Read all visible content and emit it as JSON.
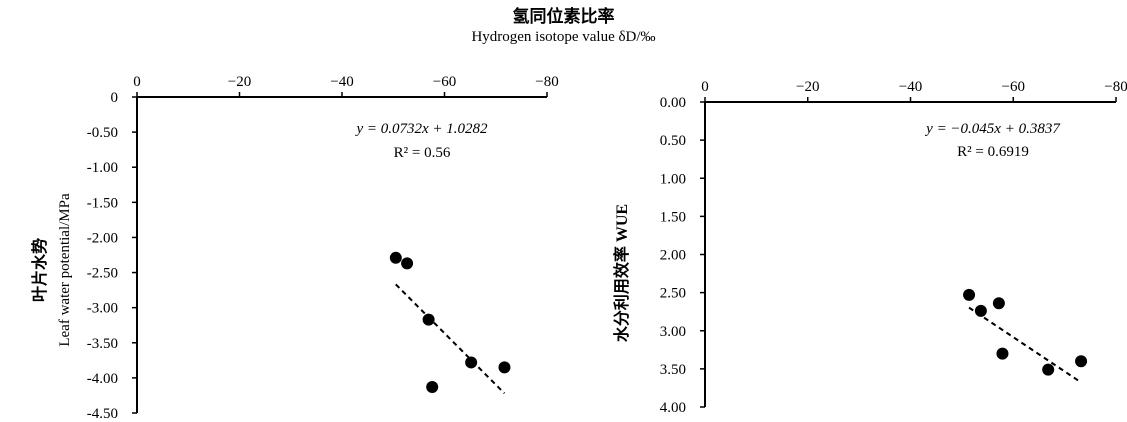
{
  "chart_data": [
    {
      "type": "scatter",
      "title": "氢同位素比率",
      "subtitle": "Hydrogen isotope value δD/‰",
      "xlabel": "Hydrogen isotope value δD/‰",
      "ylabel_zh": "叶片水势",
      "ylabel_en": "Leaf water potential/MPa",
      "xlim": [
        0,
        -80
      ],
      "ylim": [
        0,
        -4.5
      ],
      "x_ticks": [
        "0",
        "−20",
        "−40",
        "−60",
        "−80"
      ],
      "x_tick_values": [
        0,
        -20,
        -40,
        -60,
        -80
      ],
      "y_ticks": [
        "0",
        "-0.50",
        "-1.00",
        "-1.50",
        "-2.00",
        "-2.50",
        "-3.00",
        "-3.50",
        "-4.00",
        "-4.50"
      ],
      "y_tick_values": [
        0,
        -0.5,
        -1.0,
        -1.5,
        -2.0,
        -2.5,
        -3.0,
        -3.5,
        -4.0,
        -4.5
      ],
      "points": [
        {
          "x": -50.5,
          "y": -2.29
        },
        {
          "x": -52.7,
          "y": -2.37
        },
        {
          "x": -56.9,
          "y": -3.17
        },
        {
          "x": -57.6,
          "y": -4.13
        },
        {
          "x": -65.2,
          "y": -3.78
        },
        {
          "x": -71.7,
          "y": -3.85
        }
      ],
      "trendline": {
        "slope": 0.0732,
        "intercept": 1.0282,
        "x_range": [
          -50.5,
          -71.7
        ],
        "style": "dashed"
      },
      "equation": "y = 0.0732x + 1.0282",
      "r2": "R² = 0.56"
    },
    {
      "type": "scatter",
      "title": "氢同位素比率",
      "subtitle": "Hydrogen isotope value δD/‰",
      "xlabel": "Hydrogen isotope value δD/‰",
      "ylabel_zh": "水分利用效率 WUE",
      "ylabel_en": "",
      "xlim": [
        0,
        -80
      ],
      "ylim": [
        0,
        4.0
      ],
      "x_ticks": [
        "0",
        "−20",
        "−40",
        "−60",
        "−80"
      ],
      "x_tick_values": [
        0,
        -20,
        -40,
        -60,
        -80
      ],
      "y_ticks": [
        "0.00",
        "0.50",
        "1.00",
        "1.50",
        "2.00",
        "2.50",
        "3.00",
        "3.50",
        "4.00"
      ],
      "y_tick_values": [
        0,
        0.5,
        1.0,
        1.5,
        2.0,
        2.5,
        3.0,
        3.5,
        4.0
      ],
      "points": [
        {
          "x": -51.4,
          "y": 2.53
        },
        {
          "x": -53.7,
          "y": 2.74
        },
        {
          "x": -57.2,
          "y": 2.64
        },
        {
          "x": -57.9,
          "y": 3.3
        },
        {
          "x": -66.8,
          "y": 3.51
        },
        {
          "x": -73.2,
          "y": 3.4
        }
      ],
      "trendline": {
        "slope": -0.045,
        "intercept": 0.3837,
        "x_range": [
          -51.4,
          -73.2
        ],
        "style": "dashed"
      },
      "equation": "y = −0.045x + 0.3837",
      "r2": "R² = 0.6919"
    }
  ]
}
